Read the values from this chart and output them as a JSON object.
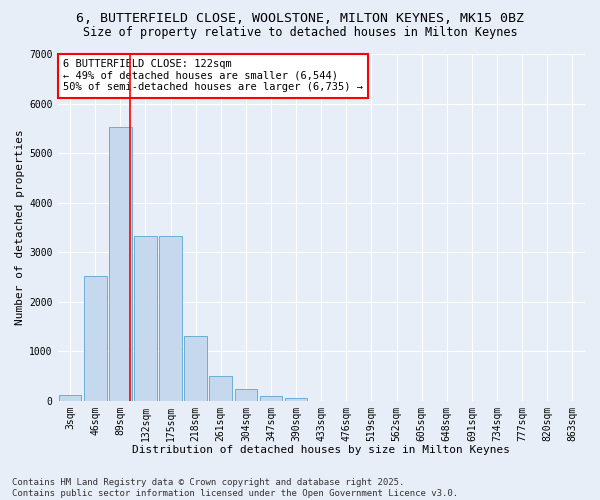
{
  "title_line1": "6, BUTTERFIELD CLOSE, WOOLSTONE, MILTON KEYNES, MK15 0BZ",
  "title_line2": "Size of property relative to detached houses in Milton Keynes",
  "xlabel": "Distribution of detached houses by size in Milton Keynes",
  "ylabel": "Number of detached properties",
  "categories": [
    "3sqm",
    "46sqm",
    "89sqm",
    "132sqm",
    "175sqm",
    "218sqm",
    "261sqm",
    "304sqm",
    "347sqm",
    "390sqm",
    "433sqm",
    "476sqm",
    "519sqm",
    "562sqm",
    "605sqm",
    "648sqm",
    "691sqm",
    "734sqm",
    "777sqm",
    "820sqm",
    "863sqm"
  ],
  "values": [
    110,
    2520,
    5520,
    3320,
    3320,
    1300,
    490,
    230,
    100,
    60,
    0,
    0,
    0,
    0,
    0,
    0,
    0,
    0,
    0,
    0,
    0
  ],
  "bar_color": "#c5d8ed",
  "bar_edge_color": "#6aaed6",
  "vline_color": "red",
  "vline_x_index": 2.38,
  "annotation_text": "6 BUTTERFIELD CLOSE: 122sqm\n← 49% of detached houses are smaller (6,544)\n50% of semi-detached houses are larger (6,735) →",
  "annotation_box_color": "white",
  "annotation_box_edge": "red",
  "ylim": [
    0,
    7000
  ],
  "yticks": [
    0,
    1000,
    2000,
    3000,
    4000,
    5000,
    6000,
    7000
  ],
  "background_color": "#e8eef8",
  "grid_color": "white",
  "footer_line1": "Contains HM Land Registry data © Crown copyright and database right 2025.",
  "footer_line2": "Contains public sector information licensed under the Open Government Licence v3.0.",
  "title_fontsize": 9.5,
  "subtitle_fontsize": 8.5,
  "axis_label_fontsize": 8,
  "tick_fontsize": 7,
  "annotation_fontsize": 7.5,
  "footer_fontsize": 6.5
}
